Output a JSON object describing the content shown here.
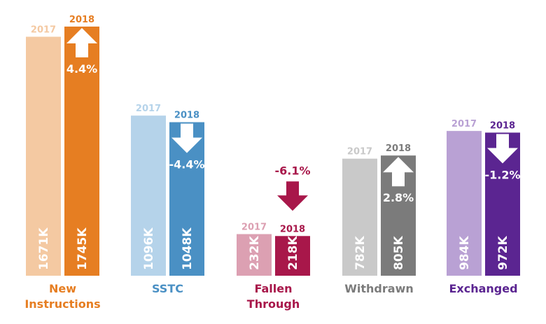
{
  "chart_data": {
    "type": "bar",
    "title": "",
    "xlabel": "",
    "ylabel": "",
    "series_names": [
      "2017",
      "2018"
    ],
    "categories": [
      {
        "name": "New Instructions",
        "lines": [
          "New",
          "Instructions"
        ],
        "values": [
          1671,
          1745
        ],
        "labels": [
          "1671K",
          "1745K"
        ],
        "change": "4.4%",
        "direction": "up",
        "colors": [
          "#f4c9a2",
          "#e67e22"
        ],
        "label_color": "#e67e22"
      },
      {
        "name": "SSTC",
        "lines": [
          "SSTC"
        ],
        "values": [
          1096,
          1048
        ],
        "labels": [
          "1096K",
          "1048K"
        ],
        "change": "-4.4%",
        "direction": "down",
        "colors": [
          "#b5d3ea",
          "#4a90c4"
        ],
        "label_color": "#4a90c4"
      },
      {
        "name": "Fallen Through",
        "lines": [
          "Fallen",
          "Through"
        ],
        "values": [
          232,
          218
        ],
        "labels": [
          "232K",
          "218K"
        ],
        "change": "-6.1%",
        "direction": "down",
        "colors": [
          "#dca0b2",
          "#a8174a"
        ],
        "label_color": "#a8174a"
      },
      {
        "name": "Withdrawn",
        "lines": [
          "Withdrawn"
        ],
        "values": [
          782,
          805
        ],
        "labels": [
          "782K",
          "805K"
        ],
        "change": "2.8%",
        "direction": "up",
        "colors": [
          "#c9c9c9",
          "#7b7b7b"
        ],
        "label_color": "#7b7b7b"
      },
      {
        "name": "Exchanged",
        "lines": [
          "Exchanged"
        ],
        "values": [
          984,
          972
        ],
        "labels": [
          "984K",
          "972K"
        ],
        "change": "-1.2%",
        "direction": "down",
        "colors": [
          "#b9a1d4",
          "#5b2591"
        ],
        "label_color": "#5b2591"
      }
    ],
    "year_label_colors": [
      "light",
      "dark"
    ]
  }
}
